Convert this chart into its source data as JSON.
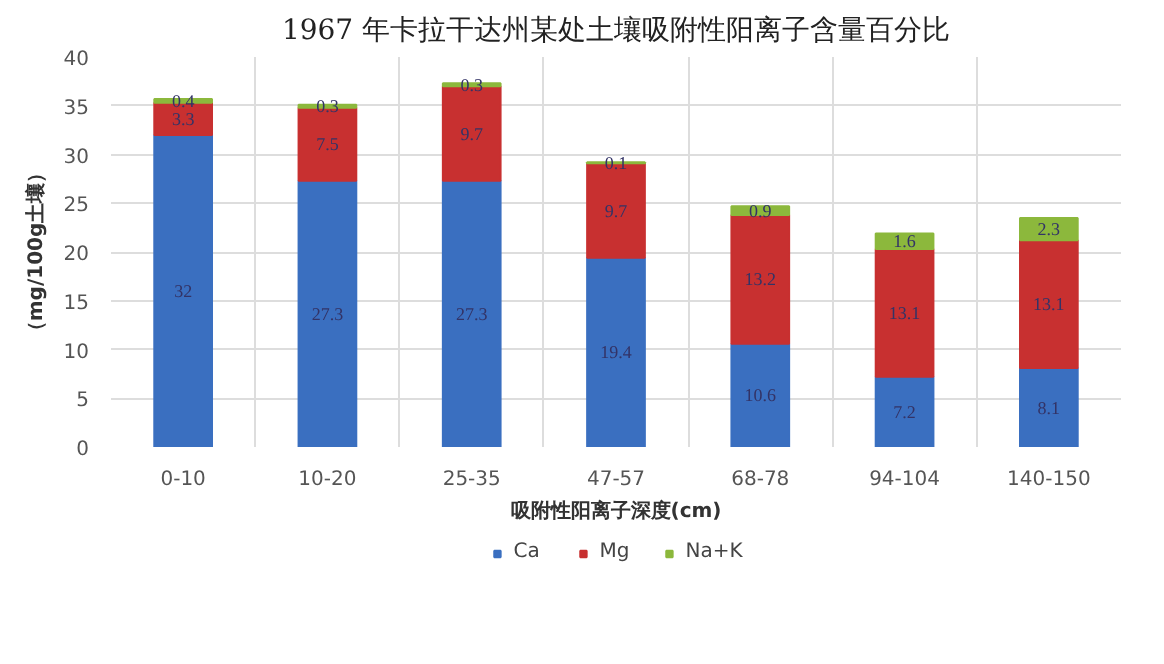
{
  "chart_data": {
    "type": "bar",
    "stacked": true,
    "title": "1967 年卡拉干达州某处土壤吸附性阳离子含量百分比",
    "xlabel": "吸附性阳离子深度(cm)",
    "ylabel": "（mg/100g土壤）",
    "categories": [
      "0-10",
      "10-20",
      "25-35",
      "47-57",
      "68-78",
      "94-104",
      "140-150"
    ],
    "series": [
      {
        "name": "Ca",
        "color": "#3a6fc0",
        "values": [
          32,
          27.3,
          27.3,
          19.4,
          10.6,
          7.2,
          8.1
        ]
      },
      {
        "name": "Mg",
        "color": "#c83030",
        "values": [
          3.3,
          7.5,
          9.7,
          9.7,
          13.2,
          13.1,
          13.1
        ]
      },
      {
        "name": "Na+K",
        "color": "#8cb83c",
        "values": [
          0.4,
          0.3,
          0.3,
          0.1,
          0.9,
          1.6,
          2.3
        ]
      }
    ],
    "ylim": [
      0,
      40
    ],
    "yticks": [
      0,
      5,
      10,
      15,
      20,
      25,
      30,
      35,
      40
    ],
    "grid": true,
    "legend": "bottom",
    "data_labels": true
  }
}
